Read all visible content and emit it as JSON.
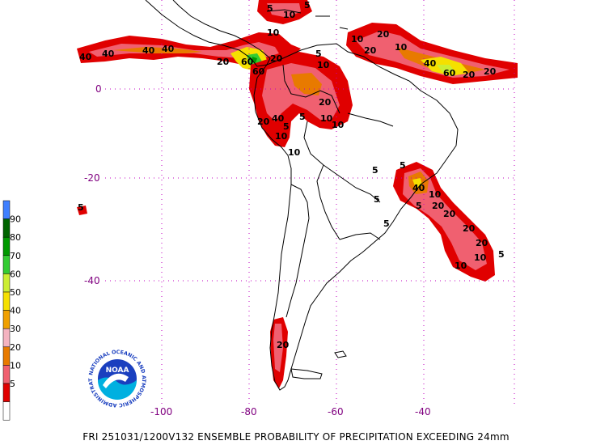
{
  "footer_text": "FRI 251031/1200V132  ENSEMBLE PROBABILITY OF PRECIPITATION EXCEEDING 24mm",
  "noaa_logo_text": "NOAA",
  "noaa_ring_text": "NATIONAL OCEANIC AND ATMOSPHERIC ADMINISTRATION",
  "lat_labels": [
    "0",
    "-20",
    "-40"
  ],
  "lon_labels": [
    "-100",
    "-80",
    "-60",
    "-40"
  ],
  "legend": {
    "labels": [
      "90",
      "80",
      "70",
      "60",
      "50",
      "40",
      "30",
      "20",
      "10",
      "5"
    ],
    "colors": [
      "#3f7fff",
      "#006400",
      "#009900",
      "#33cc33",
      "#ccee33",
      "#f5e000",
      "#f0a000",
      "#f4b3c0",
      "#e87a00",
      "#f06070",
      "#e00000",
      "#ffffff"
    ]
  },
  "contour_labels": {
    "top": [
      "5",
      "10",
      "5",
      "10",
      "10",
      "20",
      "40",
      "40",
      "40",
      "40",
      "20",
      "60",
      "20",
      "60",
      "10",
      "20",
      "40",
      "60",
      "20",
      "10",
      "5",
      "20"
    ],
    "andes": [
      "20",
      "5",
      "10",
      "20",
      "5",
      "10",
      "10",
      "40",
      "10"
    ],
    "brazil": [
      "5",
      "5",
      "5",
      "5",
      "40",
      "10",
      "5",
      "20",
      "20",
      "20",
      "20",
      "10",
      "5",
      "10"
    ],
    "misc": [
      "5",
      "20"
    ]
  }
}
